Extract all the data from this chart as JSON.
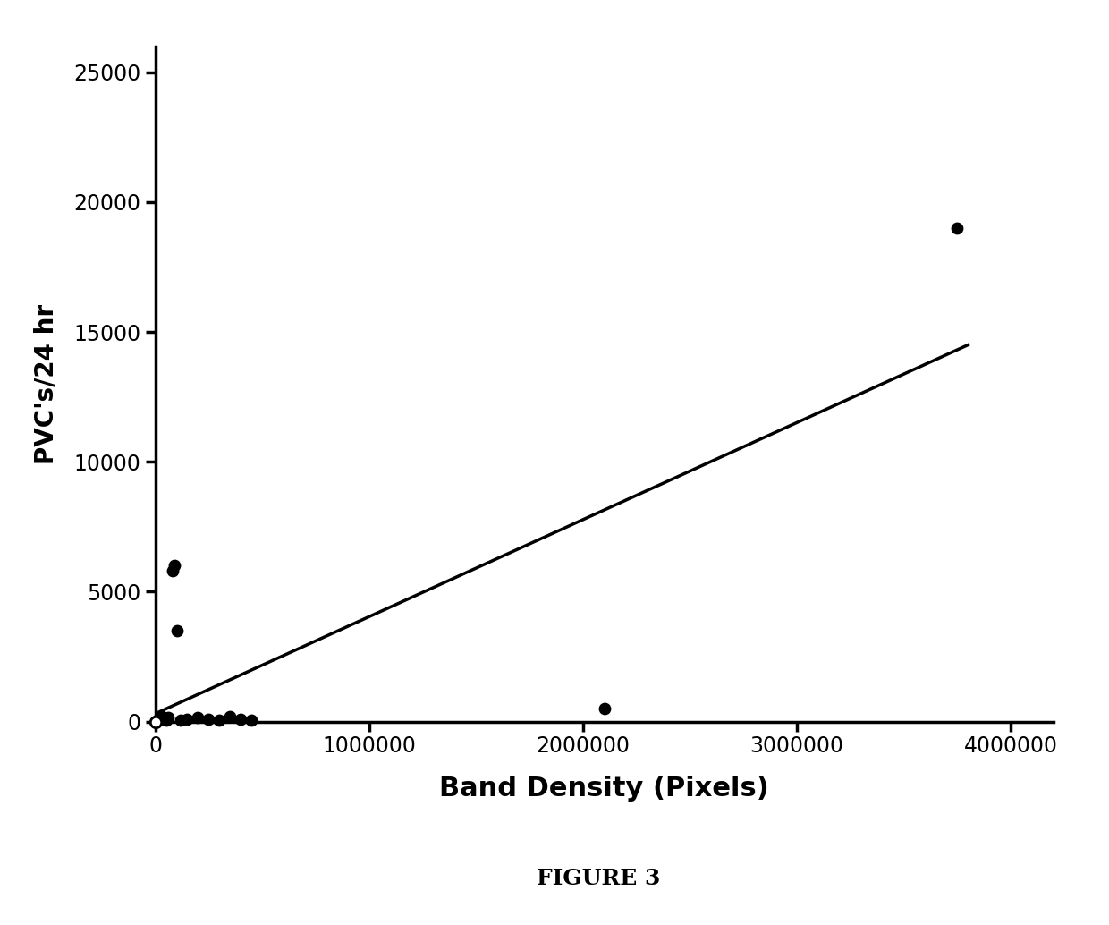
{
  "scatter_x": [
    10000,
    20000,
    25000,
    30000,
    40000,
    50000,
    60000,
    80000,
    90000,
    100000,
    120000,
    150000,
    200000,
    250000,
    300000,
    350000,
    400000,
    450000,
    2100000,
    3750000
  ],
  "scatter_y": [
    50,
    100,
    150,
    200,
    100,
    50,
    150,
    5800,
    6000,
    3500,
    50,
    100,
    150,
    100,
    50,
    200,
    100,
    50,
    500,
    19000
  ],
  "origin_x": [
    0
  ],
  "origin_y": [
    0
  ],
  "line_x": [
    0,
    3800000
  ],
  "line_y": [
    300,
    14500
  ],
  "xlabel": "Band Density (Pixels)",
  "ylabel": "PVC's/24 hr",
  "figure_label": "FIGURE 3",
  "xlim": [
    0,
    4200000
  ],
  "ylim": [
    0,
    26000
  ],
  "yticks": [
    0,
    5000,
    10000,
    15000,
    20000,
    25000
  ],
  "xticks": [
    0,
    1000000,
    2000000,
    3000000,
    4000000
  ],
  "background_color": "#ffffff",
  "scatter_color": "#000000",
  "line_color": "#000000",
  "marker_size": 80,
  "line_width": 2.5,
  "axis_linewidth": 2.5,
  "xlabel_fontsize": 22,
  "ylabel_fontsize": 20,
  "tick_fontsize": 17,
  "figure_label_fontsize": 18
}
